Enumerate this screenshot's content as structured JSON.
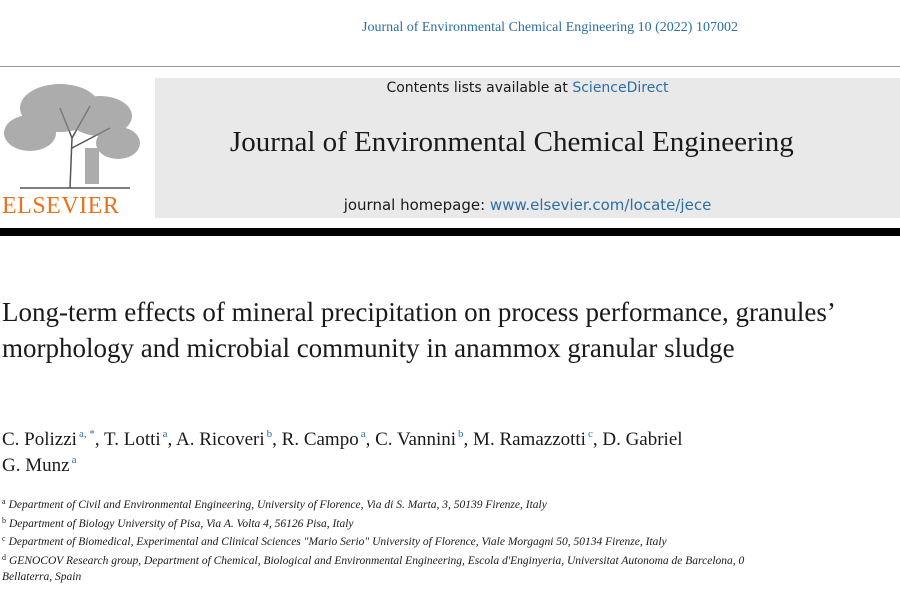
{
  "header": {
    "citation": "Journal of Environmental Chemical Engineering 10 (2022) 107002"
  },
  "banner": {
    "contents_prefix": "Contents lists available at",
    "contents_link": "ScienceDirect",
    "journal": "Journal of Environmental Chemical Engineering",
    "homepage_prefix": "journal homepage:",
    "homepage_link": "www.elsevier.com/locate/jece",
    "publisher": "ELSEVIER"
  },
  "article": {
    "title": "Long-term effects of mineral precipitation on process performance, granules’ morphology and microbial community in anammox granular sludge",
    "author_lines": [
      [
        {
          "name": "C. Polizzi",
          "sup": "a, *"
        },
        {
          "name": "T. Lotti",
          "sup": "a"
        },
        {
          "name": "A. Ricoveri",
          "sup": "b"
        },
        {
          "name": "R. Campo",
          "sup": "a"
        },
        {
          "name": "C. Vannini",
          "sup": "b"
        },
        {
          "name": "M. Ramazzotti",
          "sup": "c"
        },
        {
          "name": "D. Gabriel"
        }
      ],
      [
        {
          "name": "G. Munz",
          "sup": "a"
        }
      ]
    ],
    "affiliations": [
      {
        "sup": "a",
        "lines": [
          "Department of Civil and Environmental Engineering, University of Florence, Via di S. Marta, 3, 50139 Firenze, Italy"
        ]
      },
      {
        "sup": "b",
        "lines": [
          "Department of Biology University of Pisa, Via A. Volta 4, 56126 Pisa, Italy"
        ]
      },
      {
        "sup": "c",
        "lines": [
          "Department of Biomedical, Experimental and Clinical Sciences \"Mario Serio\" University of Florence, Viale Morgagni 50, 50134 Firenze, Italy"
        ]
      },
      {
        "sup": "d",
        "lines": [
          "GENOCOV Research group, Department of Chemical, Biological and Environmental Engineering, Escola d'Enginyeria, Universitat Autonoma de Barcelona, 0",
          "Bellaterra, Spain"
        ]
      }
    ]
  }
}
